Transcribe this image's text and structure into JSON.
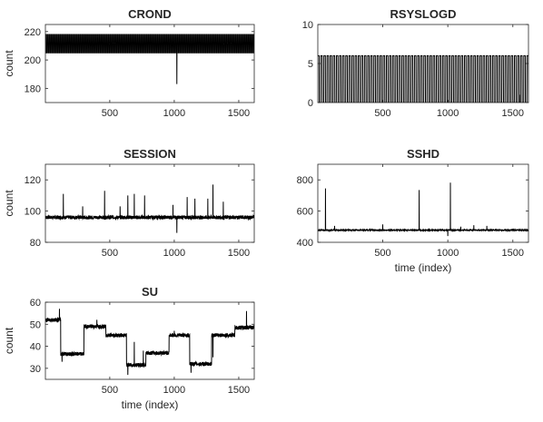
{
  "chart_data": [
    {
      "type": "line",
      "title": "CROND",
      "xlabel": "",
      "ylabel": "count",
      "xlim": [
        1,
        1620
      ],
      "ylim": [
        170,
        225
      ],
      "xticks": [
        500,
        1000,
        1500
      ],
      "yticks": [
        180,
        200,
        220
      ],
      "xtick_labels": [
        "500",
        "1000",
        "1500"
      ],
      "ytick_labels": [
        "180",
        "200",
        "220"
      ],
      "grid": false,
      "pattern": "periodic oscillation between ~205 and ~218 with one downward spike",
      "low": 205,
      "high": 218,
      "period": 14,
      "spikes": [
        {
          "x": 1020,
          "y": 183
        }
      ]
    },
    {
      "type": "line",
      "title": "RSYSLOGD",
      "xlabel": "",
      "ylabel": "",
      "xlim": [
        1,
        1620
      ],
      "ylim": [
        0,
        10
      ],
      "xticks": [
        500,
        1000,
        1500
      ],
      "yticks": [
        0,
        5,
        10
      ],
      "xtick_labels": [
        "500",
        "1000",
        "1500"
      ],
      "ytick_labels": [
        "0",
        "5",
        "10"
      ],
      "grid": false,
      "pattern": "regular pulses between 0 and 6",
      "low": 0,
      "high": 6,
      "period": 24,
      "spikes": [
        {
          "x": 1550,
          "y": 1
        }
      ]
    },
    {
      "type": "line",
      "title": "SESSION",
      "xlabel": "",
      "ylabel": "count",
      "xlim": [
        1,
        1620
      ],
      "ylim": [
        80,
        130
      ],
      "xticks": [
        500,
        1000,
        1500
      ],
      "yticks": [
        80,
        100,
        120
      ],
      "xtick_labels": [
        "500",
        "1000",
        "1500"
      ],
      "ytick_labels": [
        "80",
        "100",
        "120"
      ],
      "grid": false,
      "pattern": "baseline near 96 with upward spikes",
      "baseline": 96,
      "noise": 1.2,
      "spikes": [
        {
          "x": 140,
          "y": 111
        },
        {
          "x": 290,
          "y": 103
        },
        {
          "x": 460,
          "y": 113
        },
        {
          "x": 580,
          "y": 103
        },
        {
          "x": 640,
          "y": 110
        },
        {
          "x": 690,
          "y": 111
        },
        {
          "x": 770,
          "y": 110
        },
        {
          "x": 990,
          "y": 104
        },
        {
          "x": 1020,
          "y": 86
        },
        {
          "x": 1100,
          "y": 109
        },
        {
          "x": 1160,
          "y": 108
        },
        {
          "x": 1260,
          "y": 108
        },
        {
          "x": 1300,
          "y": 117
        },
        {
          "x": 1380,
          "y": 106
        }
      ]
    },
    {
      "type": "line",
      "title": "SSHD",
      "xlabel": "time (index)",
      "ylabel": "",
      "xlim": [
        1,
        1620
      ],
      "ylim": [
        400,
        900
      ],
      "xticks": [
        500,
        1000,
        1500
      ],
      "yticks": [
        400,
        600,
        800
      ],
      "xtick_labels": [
        "500",
        "1000",
        "1500"
      ],
      "ytick_labels": [
        "400",
        "600",
        "800"
      ],
      "grid": false,
      "pattern": "baseline near 478 with a few large spikes",
      "baseline": 478,
      "noise": 3,
      "spikes": [
        {
          "x": 60,
          "y": 745
        },
        {
          "x": 130,
          "y": 505
        },
        {
          "x": 500,
          "y": 515
        },
        {
          "x": 780,
          "y": 735
        },
        {
          "x": 1000,
          "y": 440
        },
        {
          "x": 1020,
          "y": 782
        },
        {
          "x": 1100,
          "y": 500
        },
        {
          "x": 1200,
          "y": 510
        },
        {
          "x": 1300,
          "y": 505
        }
      ]
    },
    {
      "type": "line",
      "title": "SU",
      "xlabel": "time (index)",
      "ylabel": "count",
      "xlim": [
        1,
        1620
      ],
      "ylim": [
        25,
        60
      ],
      "xticks": [
        500,
        1000,
        1500
      ],
      "yticks": [
        30,
        40,
        50,
        60
      ],
      "xtick_labels": [
        "500",
        "1000",
        "1500"
      ],
      "ytick_labels": [
        "30",
        "40",
        "50",
        "60"
      ],
      "grid": false,
      "pattern": "piecewise constant levels with noise",
      "noise": 0.9,
      "segments": [
        {
          "x0": 1,
          "x1": 120,
          "level": 52
        },
        {
          "x0": 120,
          "x1": 300,
          "level": 36.5
        },
        {
          "x0": 300,
          "x1": 470,
          "level": 49
        },
        {
          "x0": 470,
          "x1": 630,
          "level": 45
        },
        {
          "x0": 630,
          "x1": 780,
          "level": 31.5
        },
        {
          "x0": 780,
          "x1": 960,
          "level": 37
        },
        {
          "x0": 960,
          "x1": 1120,
          "level": 45
        },
        {
          "x0": 1120,
          "x1": 1290,
          "level": 32
        },
        {
          "x0": 1290,
          "x1": 1470,
          "level": 45
        },
        {
          "x0": 1470,
          "x1": 1620,
          "level": 48.5
        }
      ],
      "spikes": [
        {
          "x": 110,
          "y": 57
        },
        {
          "x": 130,
          "y": 33
        },
        {
          "x": 400,
          "y": 52
        },
        {
          "x": 640,
          "y": 27
        },
        {
          "x": 690,
          "y": 42
        },
        {
          "x": 760,
          "y": 38
        },
        {
          "x": 1000,
          "y": 47
        },
        {
          "x": 1130,
          "y": 28
        },
        {
          "x": 1300,
          "y": 35
        },
        {
          "x": 1560,
          "y": 56
        }
      ]
    }
  ]
}
